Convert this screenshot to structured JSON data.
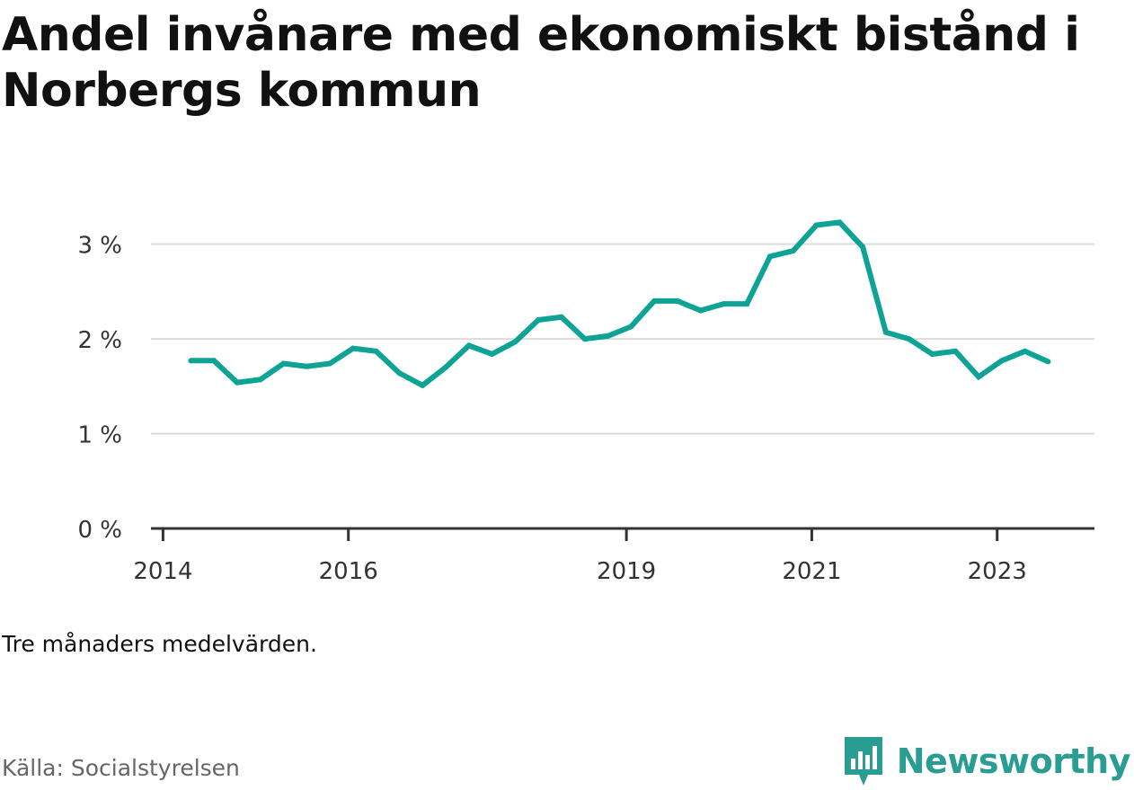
{
  "title": "Andel invånare med ekonomiskt bistånd i Norbergs kommun",
  "note": "Tre månaders medelvärden.",
  "source": "Källa: Socialstyrelsen",
  "brand": {
    "name": "Newsworthy",
    "icon": "newsworthy-logo-icon"
  },
  "colors": {
    "line": "#0fa396",
    "grid": "#dcdcdc",
    "axis": "#333333",
    "brand": "#2a9d92"
  },
  "chart_data": {
    "type": "line",
    "title": "Andel invånare med ekonomiskt bistånd i Norbergs kommun",
    "xlabel": "",
    "ylabel": "",
    "y_ticks": [
      {
        "value": 0,
        "label": "0 %"
      },
      {
        "value": 1,
        "label": "1 %"
      },
      {
        "value": 2,
        "label": "2 %"
      },
      {
        "value": 3,
        "label": "3 %"
      }
    ],
    "x_ticks": [
      {
        "value": 2014.0,
        "label": "2014"
      },
      {
        "value": 2016.0,
        "label": "2016"
      },
      {
        "value": 2019.0,
        "label": "2019"
      },
      {
        "value": 2021.0,
        "label": "2021"
      },
      {
        "value": 2023.0,
        "label": "2023"
      }
    ],
    "xlim": [
      2013.87,
      2024.05
    ],
    "ylim": [
      0,
      3.3
    ],
    "grid": true,
    "series": [
      {
        "name": "",
        "x": [
          2014.3,
          2014.55,
          2014.8,
          2015.05,
          2015.3,
          2015.55,
          2015.8,
          2016.05,
          2016.3,
          2016.55,
          2016.8,
          2017.05,
          2017.3,
          2017.55,
          2017.8,
          2018.05,
          2018.3,
          2018.55,
          2018.8,
          2019.05,
          2019.3,
          2019.55,
          2019.8,
          2020.05,
          2020.3,
          2020.55,
          2020.8,
          2021.05,
          2021.3,
          2021.55,
          2021.8,
          2022.05,
          2022.3,
          2022.55,
          2022.8,
          2023.05,
          2023.3,
          2023.55
        ],
        "values": [
          1.77,
          1.77,
          1.54,
          1.57,
          1.74,
          1.71,
          1.74,
          1.9,
          1.87,
          1.64,
          1.51,
          1.7,
          1.93,
          1.84,
          1.97,
          2.2,
          2.23,
          2.0,
          2.03,
          2.13,
          2.4,
          2.4,
          2.3,
          2.37,
          2.37,
          2.87,
          2.93,
          3.2,
          3.23,
          2.97,
          2.07,
          2.0,
          1.84,
          1.87,
          1.6,
          1.77,
          1.87,
          1.76
        ]
      }
    ]
  }
}
